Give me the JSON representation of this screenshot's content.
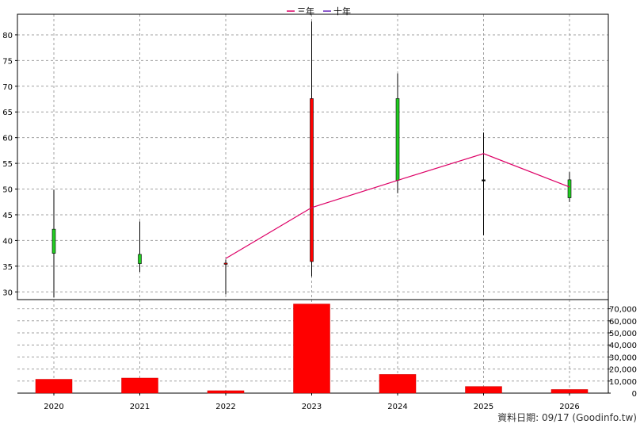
{
  "chart_data": {
    "type": "candlestick",
    "categories": [
      "2020",
      "2021",
      "2022",
      "2023",
      "2024",
      "2025",
      "2026"
    ],
    "legend": [
      {
        "name": "三年",
        "color": "#dd0066"
      },
      {
        "name": "十年",
        "color": "#6622bb"
      }
    ],
    "price_axis": {
      "ylim": [
        28.5,
        84
      ],
      "ticks": [
        30,
        35,
        40,
        45,
        50,
        55,
        60,
        65,
        70,
        75,
        80
      ],
      "grid": true
    },
    "candles": [
      {
        "x": "2020",
        "open": 37.5,
        "close": 42.2,
        "high": 49.9,
        "low": 28.9
      },
      {
        "x": "2021",
        "open": 35.5,
        "close": 37.3,
        "high": 43.7,
        "low": 33.9
      },
      {
        "x": "2022",
        "open": 35.6,
        "close": 35.4,
        "high": 36.3,
        "low": 29.5
      },
      {
        "x": "2023",
        "open": 67.6,
        "close": 35.9,
        "high": 82.6,
        "low": 33.0
      },
      {
        "x": "2024",
        "open": 51.7,
        "close": 67.6,
        "high": 72.5,
        "low": 49.2
      },
      {
        "x": "2025",
        "open": 51.8,
        "close": 51.8,
        "high": 61.0,
        "low": 41.0
      },
      {
        "x": "2026",
        "open": 48.3,
        "close": 51.8,
        "high": 53.3,
        "low": 47.5
      }
    ],
    "up_color": "#22cc22",
    "down_color": "#ff0000",
    "three_year_line": {
      "name": "三年",
      "points": [
        [
          "2022",
          36.5
        ],
        [
          "2023",
          46.4
        ],
        [
          "2024",
          51.7
        ],
        [
          "2025",
          56.9
        ],
        [
          "2026",
          50.4
        ]
      ]
    },
    "volume_axis": {
      "ylim": [
        0,
        75000
      ],
      "ticks": [
        0,
        10000,
        20000,
        30000,
        40000,
        50000,
        60000,
        70000
      ],
      "tick_labels": [
        "0",
        "10,000",
        "20,000",
        "30,000",
        "40,000",
        "50,000",
        "60,000",
        "70,000"
      ],
      "grid": true
    },
    "volumes": [
      {
        "x": "2020",
        "value": 11500
      },
      {
        "x": "2021",
        "value": 12500
      },
      {
        "x": "2022",
        "value": 2000
      },
      {
        "x": "2023",
        "value": 74000
      },
      {
        "x": "2024",
        "value": 15500
      },
      {
        "x": "2025",
        "value": 5500
      },
      {
        "x": "2026",
        "value": 3000
      }
    ],
    "volume_color": "#ff0000"
  },
  "footer": "資料日期: 09/17  (Goodinfo.tw)"
}
